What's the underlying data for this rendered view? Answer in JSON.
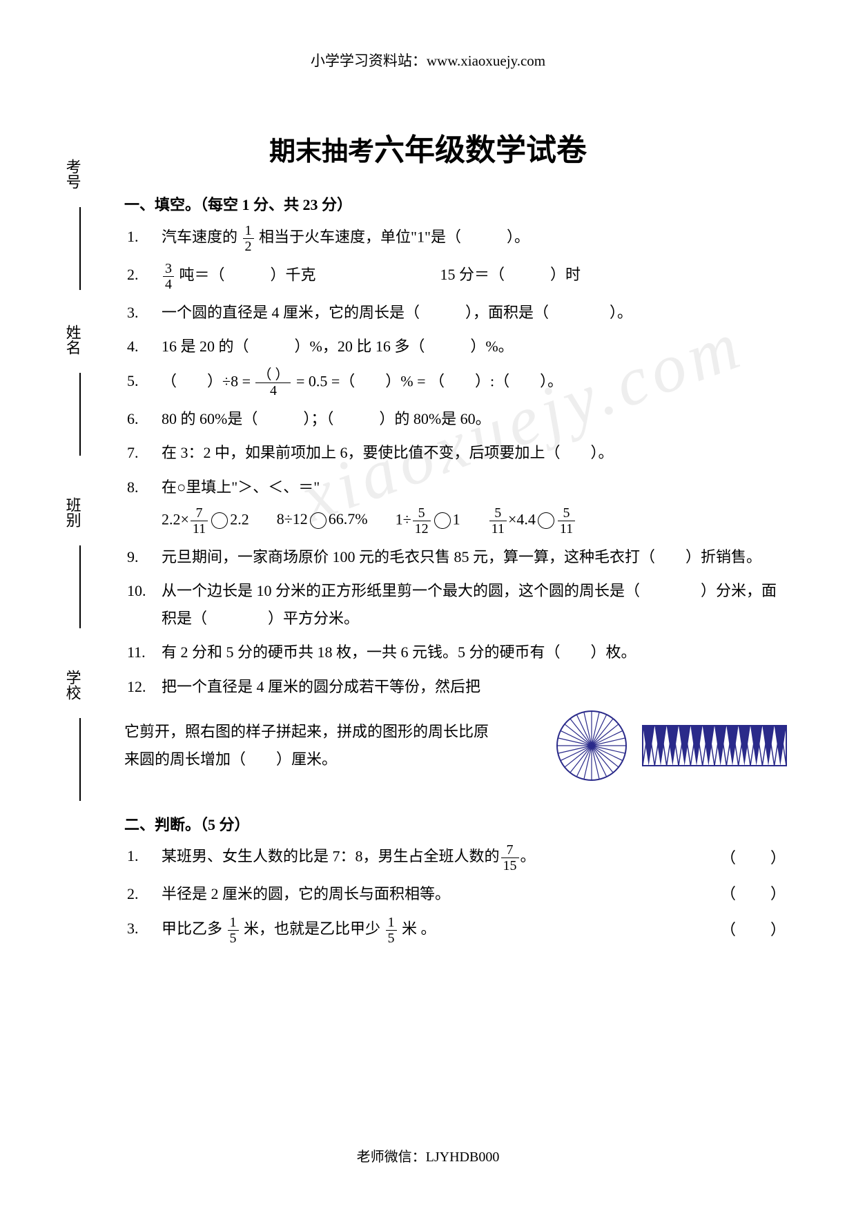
{
  "header": "小学学习资料站：www.xiaoxuejy.com",
  "title_prefix": "期末抽考",
  "title_main": "六年级数学试卷",
  "sidebar": {
    "school": "学校",
    "class": "班别",
    "name": "姓名",
    "number": "考号"
  },
  "section1": {
    "heading": "一、填空。（每空 1 分、共 23 分）",
    "q1": {
      "num": "1.",
      "text_a": "汽车速度的 ",
      "frac_n": "1",
      "frac_d": "2",
      "text_b": " 相当于火车速度，单位\"1\"是（　　　）。"
    },
    "q2": {
      "num": "2.",
      "frac_n": "3",
      "frac_d": "4",
      "text_a": " 吨＝（　　　）千克",
      "text_b": "15 分＝（　　　）时"
    },
    "q3": {
      "num": "3.",
      "text": "一个圆的直径是 4 厘米，它的周长是（　　　），面积是（　　　　）。"
    },
    "q4": {
      "num": "4.",
      "text": "16 是 20 的（　　　）%，20 比 16 多（　　　）%。"
    },
    "q5": {
      "num": "5.",
      "text_a": "（　　）÷8 = ",
      "frac_n": "（ ）",
      "frac_d": "4",
      "text_b": " = 0.5 =（　　）% = （　　）:（　　）。"
    },
    "q6": {
      "num": "6.",
      "text": "80 的 60%是（　　　）；（　　　）的 80%是 60。"
    },
    "q7": {
      "num": "7.",
      "text": "在 3：2 中，如果前项加上 6，要使比值不变，后项要加上（　　）。"
    },
    "q8": {
      "num": "8.",
      "lead": "在○里填上\"＞、＜、＝\"",
      "a_pre": "2.2×",
      "a_fn": "7",
      "a_fd": "11",
      "a_post": "2.2",
      "b_pre": "8÷12",
      "b_post": "66.7%",
      "c_pre": "1÷",
      "c_fn": "5",
      "c_fd": "12",
      "c_post": "1",
      "d_fn1": "5",
      "d_fd1": "11",
      "d_mid": "×4.4",
      "d_fn2": "5",
      "d_fd2": "11"
    },
    "q9": {
      "num": "9.",
      "text": "元旦期间，一家商场原价 100 元的毛衣只售 85 元，算一算，这种毛衣打（　　）折销售。"
    },
    "q10": {
      "num": "10.",
      "text": "从一个边长是 10 分米的正方形纸里剪一个最大的圆，这个圆的周长是（　　　　）分米，面积是（　　　　）平方分米。"
    },
    "q11": {
      "num": "11.",
      "text": "有 2 分和 5 分的硬币共 18 枚，一共 6 元钱。5 分的硬币有（　　）枚。"
    },
    "q12": {
      "num": "12.",
      "line1": "把一个直径是 4 厘米的圆分成若干等份，然后把",
      "line2": "它剪开，照右图的样子拼起来，拼成的图形的周长比原",
      "line3": "来圆的周长增加（　　）厘米。"
    }
  },
  "section2": {
    "heading": "二、判断。（5 分）",
    "q1": {
      "num": "1.",
      "text_a": "某班男、女生人数的比是 7：8，男生占全班人数的",
      "frac_n": "7",
      "frac_d": "15",
      "text_b": "。",
      "paren": "（　　）"
    },
    "q2": {
      "num": "2.",
      "text": "半径是 2 厘米的圆，它的周长与面积相等。",
      "paren": "（　　）"
    },
    "q3": {
      "num": "3.",
      "text_a": "甲比乙多 ",
      "f1n": "1",
      "f1d": "5",
      "text_b": " 米，也就是乙比甲少 ",
      "f2n": "1",
      "f2d": "5",
      "text_c": " 米 。",
      "paren": "（　　）"
    }
  },
  "footer": "老师微信：LJYHDB000",
  "figure": {
    "circle_spokes": 28,
    "circle_stroke": "#2a2a8a",
    "zigzag_teeth": 12,
    "zigzag_fill": "#2a2a8a",
    "zigzag_bg": "#ffffff"
  }
}
